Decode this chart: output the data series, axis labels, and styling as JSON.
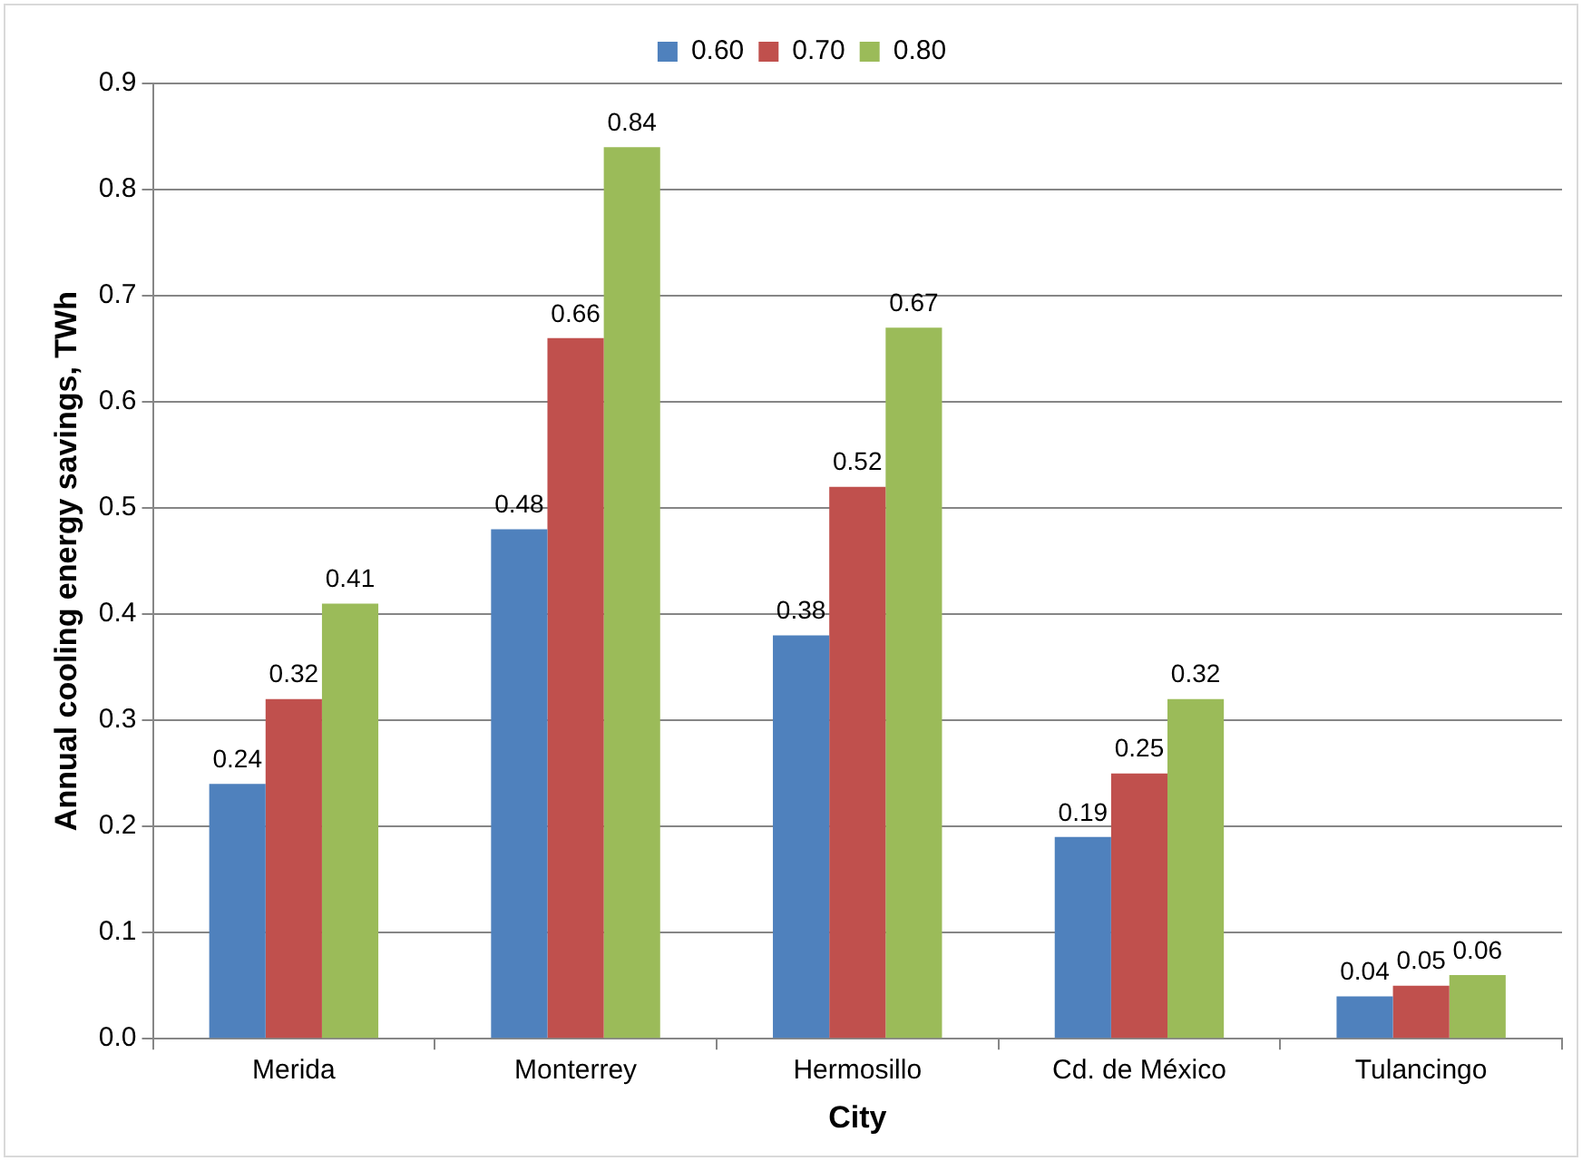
{
  "chart_data": {
    "type": "bar",
    "xlabel": "City",
    "ylabel": "Annual cooling energy savings, TWh",
    "categories": [
      "Merida",
      "Monterrey",
      "Hermosillo",
      "Cd. de México",
      "Tulancingo"
    ],
    "series": [
      {
        "name": "0.60",
        "color": "#4f81bd",
        "values": [
          0.24,
          0.48,
          0.38,
          0.19,
          0.04
        ]
      },
      {
        "name": "0.70",
        "color": "#c0504d",
        "values": [
          0.32,
          0.66,
          0.52,
          0.25,
          0.05
        ]
      },
      {
        "name": "0.80",
        "color": "#9bbb59",
        "values": [
          0.41,
          0.84,
          0.67,
          0.32,
          0.06
        ]
      }
    ],
    "ylim": [
      0,
      0.9
    ],
    "yticks": [
      {
        "value": 0,
        "label": "0.0"
      },
      0.1,
      0.2,
      0.3,
      0.4,
      0.5,
      0.6,
      0.7,
      0.8,
      0.9
    ],
    "grid": "y",
    "legend": "top",
    "data_labels": true
  }
}
